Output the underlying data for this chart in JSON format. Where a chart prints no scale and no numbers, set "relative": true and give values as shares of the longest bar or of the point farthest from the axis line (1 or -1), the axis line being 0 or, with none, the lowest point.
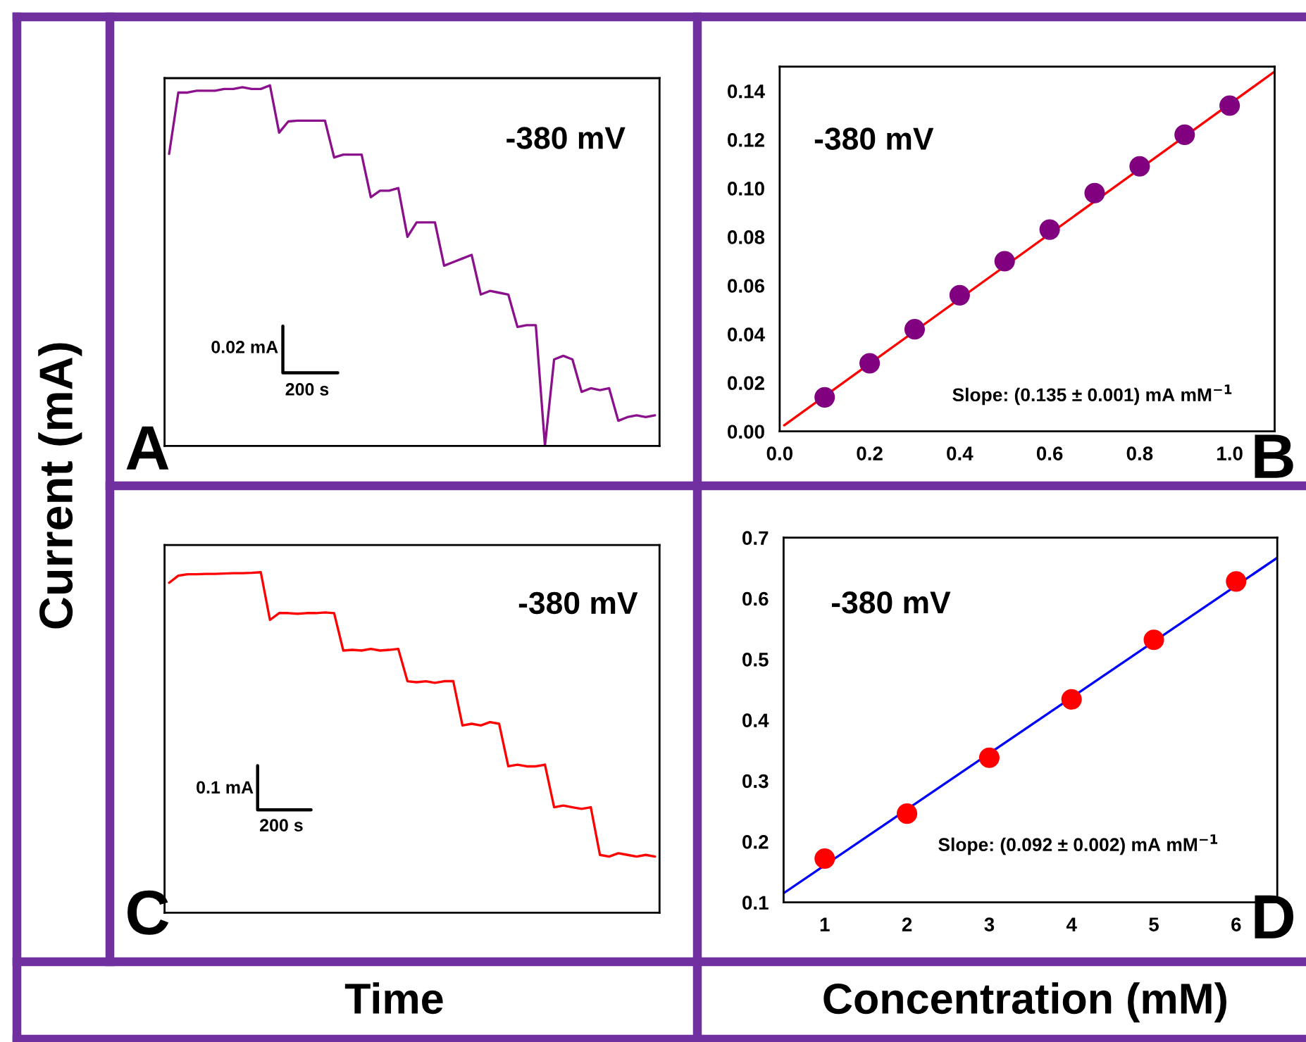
{
  "chart_data": [
    {
      "type": "line",
      "relative": true,
      "ylabel": "Current (mA)",
      "categories": [
        null,
        null,
        null,
        null,
        null,
        null,
        null,
        null,
        null,
        null,
        null,
        null,
        null,
        null,
        null,
        null,
        null,
        null,
        null,
        null,
        null,
        null,
        null,
        null,
        null,
        null,
        null,
        null,
        null,
        null,
        null,
        null,
        null,
        null,
        null,
        null,
        null,
        null,
        null,
        null,
        null,
        null,
        null,
        null,
        null,
        null,
        null,
        null,
        null,
        null,
        null,
        null,
        null,
        null
      ],
      "series": [
        {
          "color": "#8b108b",
          "values": [
            0.81,
            0.98,
            0.98,
            0.985,
            0.985,
            0.985,
            0.99,
            0.99,
            0.995,
            0.99,
            0.99,
            1.0,
            0.869,
            0.9,
            0.902,
            0.902,
            0.902,
            0.902,
            0.8,
            0.808,
            0.808,
            0.808,
            0.69,
            0.708,
            0.708,
            0.715,
            0.58,
            0.62,
            0.62,
            0.62,
            0.5,
            0.51,
            0.52,
            0.53,
            0.42,
            0.43,
            0.425,
            0.42,
            0.33,
            0.335,
            0.335,
            0.0,
            0.24,
            0.25,
            0.24,
            0.15,
            0.16,
            0.155,
            0.16,
            0.07,
            0.08,
            0.085,
            0.08,
            0.085
          ]
        }
      ],
      "annotations": [
        "-380 mV",
        "0.02 mA",
        "200 s",
        "A"
      ]
    },
    {
      "type": "scatter",
      "xlim": [
        0,
        1.1
      ],
      "ylim": [
        0,
        0.15
      ],
      "xticks": [
        {
          "value": 0,
          "label": "0.0"
        },
        {
          "value": 0.2,
          "label": "0.2"
        },
        {
          "value": 0.4,
          "label": "0.4"
        },
        {
          "value": 0.6,
          "label": "0.6"
        },
        {
          "value": 0.8,
          "label": "0.8"
        },
        {
          "value": 1.0,
          "label": "1.0"
        }
      ],
      "yticks": [
        {
          "value": 0,
          "label": "0.00"
        },
        {
          "value": 0.02,
          "label": "0.02"
        },
        {
          "value": 0.04,
          "label": "0.04"
        },
        {
          "value": 0.06,
          "label": "0.06"
        },
        {
          "value": 0.08,
          "label": "0.08"
        },
        {
          "value": 0.1,
          "label": "0.10"
        },
        {
          "value": 0.12,
          "label": "0.12"
        },
        {
          "value": 0.14,
          "label": "0.14"
        }
      ],
      "series": [
        {
          "type": "line",
          "color": "#ff0000",
          "x": [
            0.01,
            1.1
          ],
          "values": [
            0.0025,
            0.148
          ]
        },
        {
          "type": "scatter",
          "marker": "circle",
          "color": "#800080",
          "x": [
            0.1,
            0.2,
            0.3,
            0.4,
            0.5,
            0.6,
            0.7,
            0.8,
            0.9,
            1.0
          ],
          "values": [
            0.014,
            0.028,
            0.042,
            0.056,
            0.07,
            0.083,
            0.098,
            0.109,
            0.122,
            0.134
          ]
        }
      ],
      "annotations": [
        "-380 mV",
        "Slope: (0.135 ± 0.001) mA mM$^{−1}$",
        "B"
      ]
    },
    {
      "type": "line",
      "relative": true,
      "xlabel": "Time",
      "categories": [
        null,
        null,
        null,
        null,
        null,
        null,
        null,
        null,
        null,
        null,
        null,
        null,
        null,
        null,
        null,
        null,
        null,
        null,
        null,
        null,
        null,
        null,
        null,
        null,
        null,
        null,
        null,
        null,
        null,
        null,
        null,
        null,
        null,
        null,
        null,
        null,
        null,
        null,
        null,
        null,
        null,
        null,
        null,
        null,
        null,
        null,
        null,
        null,
        null,
        null,
        null,
        null,
        null,
        null
      ],
      "series": [
        {
          "color": "#ff0000",
          "values": [
            0.969,
            0.99,
            0.994,
            0.994,
            0.995,
            0.995,
            0.996,
            0.997,
            0.997,
            0.998,
            1.0,
            0.86,
            0.88,
            0.88,
            0.878,
            0.88,
            0.88,
            0.882,
            0.88,
            0.77,
            0.772,
            0.77,
            0.775,
            0.77,
            0.772,
            0.775,
            0.68,
            0.677,
            0.68,
            0.675,
            0.68,
            0.68,
            0.55,
            0.555,
            0.55,
            0.56,
            0.555,
            0.43,
            0.435,
            0.43,
            0.43,
            0.435,
            0.31,
            0.315,
            0.31,
            0.305,
            0.31,
            0.17,
            0.165,
            0.175,
            0.17,
            0.165,
            0.17,
            0.165
          ]
        }
      ],
      "annotations": [
        "-380 mV",
        "0.1 mA",
        "200 s",
        "C"
      ]
    },
    {
      "type": "scatter",
      "xlim": [
        0.5,
        6.5
      ],
      "ylim": [
        0.1,
        0.7
      ],
      "xticks": [
        1,
        2,
        3,
        4,
        5,
        6
      ],
      "yticks": [
        0.1,
        0.2,
        0.3,
        0.4,
        0.5,
        0.6,
        0.7
      ],
      "xlabel": "Concentration (mM)",
      "series": [
        {
          "type": "line",
          "color": "#0000ff",
          "x": [
            0.5,
            6.5
          ],
          "values": [
            0.115,
            0.667
          ]
        },
        {
          "type": "scatter",
          "marker": "circle",
          "color": "#ff0000",
          "x": [
            1,
            2,
            3,
            4,
            5,
            6
          ],
          "values": [
            0.172,
            0.246,
            0.338,
            0.434,
            0.532,
            0.628
          ]
        }
      ],
      "annotations": [
        "-380 mV",
        "Slope: (0.092 ± 0.002) mA mM$^{−1}$",
        "D"
      ]
    }
  ]
}
